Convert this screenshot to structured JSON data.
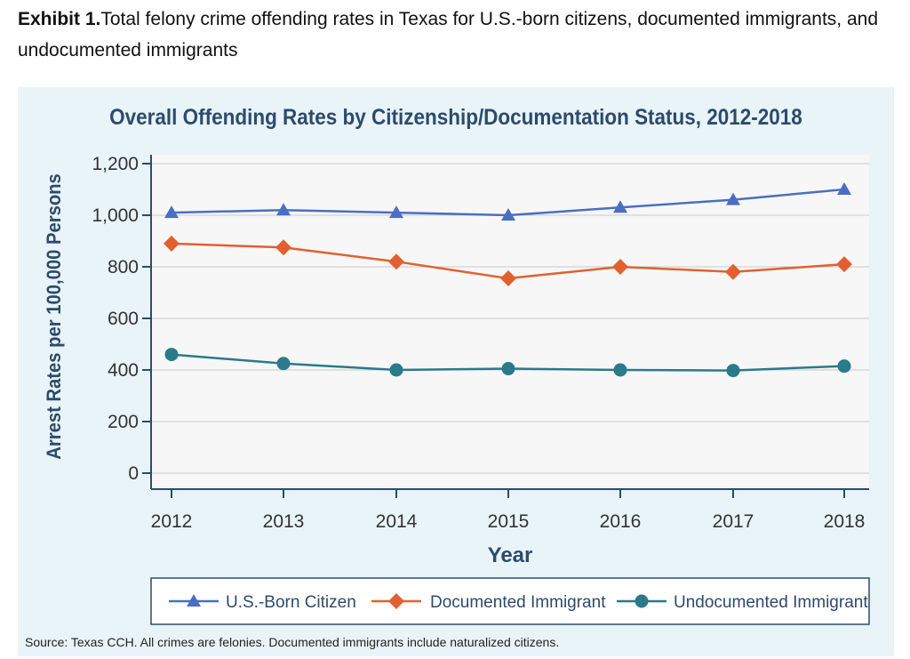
{
  "caption": {
    "label": "Exhibit 1.",
    "text": "Total felony crime offending rates in Texas for U.S.-born citizens, documented immigrants, and undocumented immigrants"
  },
  "source": "Source: Texas CCH. All crimes are felonies. Documented immigrants include naturalized citizens.",
  "colors": {
    "title": "#2e4a6b",
    "us_born": "#4a6fc1",
    "documented": "#e2602f",
    "undocumented": "#2a7a8c",
    "panel_bg": "#e8f4f8",
    "plot_bg": "#f7f7f7",
    "grid": "#c9c9c9"
  },
  "chart_data": {
    "type": "line",
    "title": "Overall Offending Rates by Citizenship/Documentation Status, 2012-2018",
    "xlabel": "Year",
    "ylabel": "Arrest Rates per 100,000 Persons",
    "categories": [
      "2012",
      "2013",
      "2014",
      "2015",
      "2016",
      "2017",
      "2018"
    ],
    "ylim": [
      0,
      1200
    ],
    "yticks": [
      0,
      200,
      400,
      600,
      800,
      1000,
      1200
    ],
    "ytick_labels": [
      "0",
      "200",
      "400",
      "600",
      "800",
      "1,000",
      "1,200"
    ],
    "grid": true,
    "legend_position": "bottom",
    "series": [
      {
        "name": "U.S.-Born Citizen",
        "marker": "triangle",
        "color": "#4a6fc1",
        "values": [
          1010,
          1020,
          1010,
          1000,
          1030,
          1060,
          1100
        ]
      },
      {
        "name": "Documented Immigrant",
        "marker": "diamond",
        "color": "#e2602f",
        "values": [
          890,
          875,
          820,
          755,
          800,
          780,
          810
        ]
      },
      {
        "name": "Undocumented Immigrant",
        "marker": "circle",
        "color": "#2a7a8c",
        "values": [
          460,
          425,
          400,
          405,
          400,
          398,
          415
        ]
      }
    ]
  }
}
